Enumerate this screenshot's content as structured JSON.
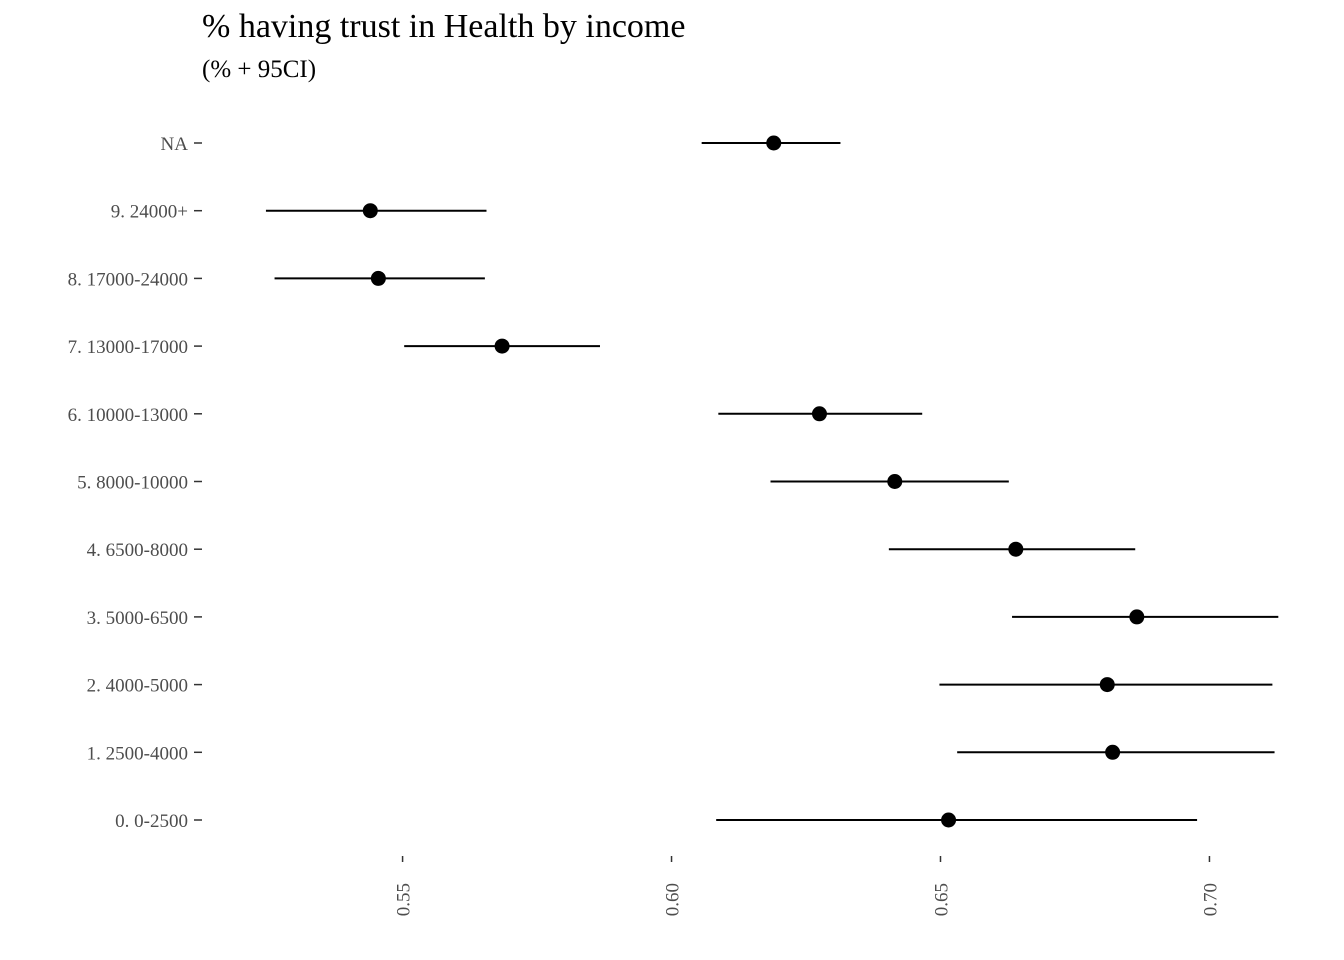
{
  "chart_data": {
    "type": "scatter",
    "title": "% having trust in Health by income",
    "subtitle": "(% + 95CI)",
    "xlabel": "",
    "ylabel": "",
    "xlim": [
      0.5142,
      0.7133
    ],
    "x_ticks": [
      "0.55",
      "0.60",
      "0.65",
      "0.70"
    ],
    "grid": false,
    "point_color": "#000000",
    "categories": [
      "NA",
      "9. 24000+",
      "8. 17000-24000",
      "7. 13000-17000",
      "6. 10000-13000",
      "5. 8000-10000",
      "4. 6500-8000",
      "3. 5000-6500",
      "2. 4000-5000",
      "1. 2500-4000",
      "0. 0-2500"
    ],
    "estimates": [
      0.619,
      0.544,
      0.5455,
      0.5685,
      0.6275,
      0.6415,
      0.664,
      0.6865,
      0.681,
      0.682,
      0.6515
    ],
    "ci_low": [
      0.6056,
      0.5246,
      0.5262,
      0.5503,
      0.6087,
      0.6184,
      0.6404,
      0.6633,
      0.6498,
      0.6531,
      0.6083
    ],
    "ci_high": [
      0.6314,
      0.5656,
      0.5653,
      0.5867,
      0.6466,
      0.6627,
      0.6862,
      0.7128,
      0.7117,
      0.7121,
      0.6977
    ]
  }
}
